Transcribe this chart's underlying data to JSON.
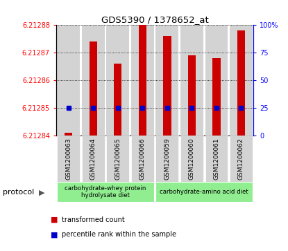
{
  "title": "GDS5390 / 1378652_at",
  "categories": [
    "GSM1200063",
    "GSM1200064",
    "GSM1200065",
    "GSM1200066",
    "GSM1200059",
    "GSM1200060",
    "GSM1200061",
    "GSM1200062"
  ],
  "red_values": [
    6.212841,
    6.212874,
    6.212866,
    6.212885,
    6.212876,
    6.212869,
    6.212868,
    6.212878
  ],
  "blue_values": [
    25,
    25,
    25,
    25,
    25,
    25,
    25,
    25
  ],
  "ylim_left": [
    6.21284,
    6.21288
  ],
  "ylim_right": [
    0,
    100
  ],
  "yticks_left": [
    6.21284,
    6.21285,
    6.21286,
    6.21287,
    6.21288
  ],
  "ytick_labels_left": [
    "6.21284",
    "6.21285",
    "6.21286",
    "6.21287",
    "6.21288"
  ],
  "yticks_right": [
    0,
    25,
    50,
    75,
    100
  ],
  "ytick_labels_right": [
    "0",
    "25",
    "50",
    "75",
    "100%"
  ],
  "group1_label": "carbohydrate-whey protein\nhydrolysate diet",
  "group2_label": "carbohydrate-amino acid diet",
  "group1_indices": [
    0,
    1,
    2,
    3
  ],
  "group2_indices": [
    4,
    5,
    6,
    7
  ],
  "group_color": "#90EE90",
  "bar_bg_color": "#d3d3d3",
  "protocol_label": "protocol",
  "legend_red": "transformed count",
  "legend_blue": "percentile rank within the sample",
  "red_color": "#cc0000",
  "blue_color": "#0000cc",
  "base_value": 6.21284
}
